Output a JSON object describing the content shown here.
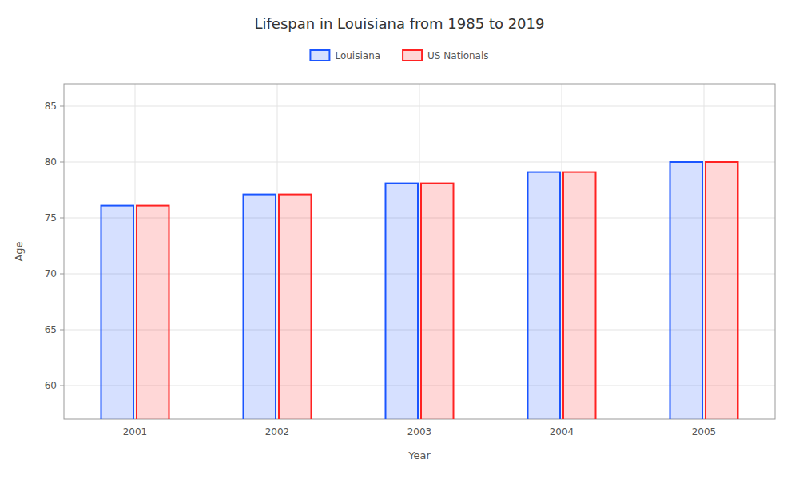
{
  "chart_data": {
    "type": "bar",
    "title": "Lifespan in Louisiana from 1985 to 2019",
    "xlabel": "Year",
    "ylabel": "Age",
    "categories": [
      "2001",
      "2002",
      "2003",
      "2004",
      "2005"
    ],
    "series": [
      {
        "name": "Louisiana",
        "color": "#1a55ff",
        "values": [
          76.1,
          77.1,
          78.1,
          79.1,
          80.0
        ]
      },
      {
        "name": "US Nationals",
        "color": "#ff2222",
        "values": [
          76.1,
          77.1,
          78.1,
          79.1,
          80.0
        ]
      }
    ],
    "ylim": [
      57,
      87
    ],
    "yticks": [
      60,
      65,
      70,
      75,
      80,
      85
    ],
    "grid": true,
    "legend": "top"
  }
}
